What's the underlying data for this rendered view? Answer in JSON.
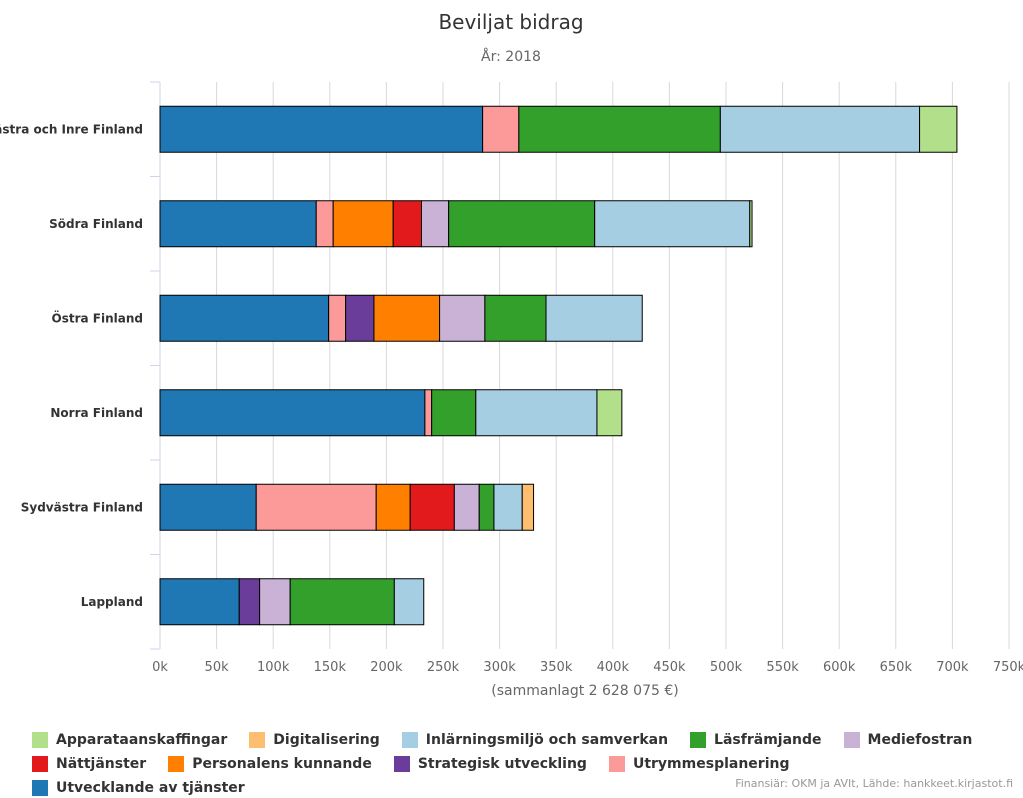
{
  "chart_data": {
    "type": "bar",
    "orientation": "horizontal",
    "stacked": true,
    "title": "Beviljat bidrag",
    "subtitle": "År: 2018",
    "xlabel": "(sammanlagt 2 628 075 €)",
    "xlim": [
      0,
      750000
    ],
    "xticks": [
      0,
      50000,
      100000,
      150000,
      200000,
      250000,
      300000,
      350000,
      400000,
      450000,
      500000,
      550000,
      600000,
      650000,
      700000,
      750000
    ],
    "xtick_labels": [
      "0k",
      "50k",
      "100k",
      "150k",
      "200k",
      "250k",
      "300k",
      "350k",
      "400k",
      "450k",
      "500k",
      "550k",
      "600k",
      "650k",
      "700k",
      "750k"
    ],
    "grid": true,
    "legend_position": "bottom",
    "categories": [
      "Västra och Inre Finland",
      "Södra Finland",
      "Östra Finland",
      "Norra Finland",
      "Sydvästra Finland",
      "Lappland"
    ],
    "series": [
      {
        "name": "Utvecklande av tjänster",
        "color": "#1f78b4",
        "values": [
          285000,
          138000,
          149000,
          234000,
          85000,
          70000
        ]
      },
      {
        "name": "Utrymmesplanering",
        "color": "#fb9a99",
        "values": [
          32000,
          15000,
          15000,
          6000,
          106000,
          0
        ]
      },
      {
        "name": "Strategisk utveckling",
        "color": "#6a3d9a",
        "values": [
          0,
          0,
          25000,
          0,
          0,
          18000
        ]
      },
      {
        "name": "Personalens kunnande",
        "color": "#ff7f00",
        "values": [
          0,
          53000,
          58000,
          0,
          30000,
          0
        ]
      },
      {
        "name": "Nättjänster",
        "color": "#e31a1c",
        "values": [
          0,
          25000,
          0,
          0,
          39000,
          0
        ]
      },
      {
        "name": "Mediefostran",
        "color": "#cab2d6",
        "values": [
          0,
          24000,
          40000,
          0,
          22000,
          27000
        ]
      },
      {
        "name": "Läsfrämjande",
        "color": "#33a02c",
        "values": [
          178000,
          129000,
          54000,
          39000,
          13000,
          92000
        ]
      },
      {
        "name": "Inlärningsmiljö och samverkan",
        "color": "#a6cee3",
        "values": [
          176000,
          137000,
          85000,
          107000,
          25000,
          26000
        ]
      },
      {
        "name": "Digitalisering",
        "color": "#fdbf6f",
        "values": [
          0,
          0,
          0,
          0,
          10000,
          0
        ]
      },
      {
        "name": "Apparataanskaffingar",
        "color": "#b2df8a",
        "values": [
          33000,
          2000,
          0,
          22000,
          0,
          0
        ]
      }
    ]
  },
  "legend": {
    "items": [
      {
        "label": "Apparataanskaffingar",
        "color": "#b2df8a"
      },
      {
        "label": "Digitalisering",
        "color": "#fdbf6f"
      },
      {
        "label": "Inlärningsmiljö och samverkan",
        "color": "#a6cee3"
      },
      {
        "label": "Läsfrämjande",
        "color": "#33a02c"
      },
      {
        "label": "Mediefostran",
        "color": "#cab2d6"
      },
      {
        "label": "Nättjänster",
        "color": "#e31a1c"
      },
      {
        "label": "Personalens kunnande",
        "color": "#ff7f00"
      },
      {
        "label": "Strategisk utveckling",
        "color": "#6a3d9a"
      },
      {
        "label": "Utrymmesplanering",
        "color": "#fb9a99"
      },
      {
        "label": "Utvecklande av tjänster",
        "color": "#1f78b4"
      }
    ]
  },
  "credit": "Finansiär: OKM ja AVIt, Lähde: hankkeet.kirjastot.fi"
}
